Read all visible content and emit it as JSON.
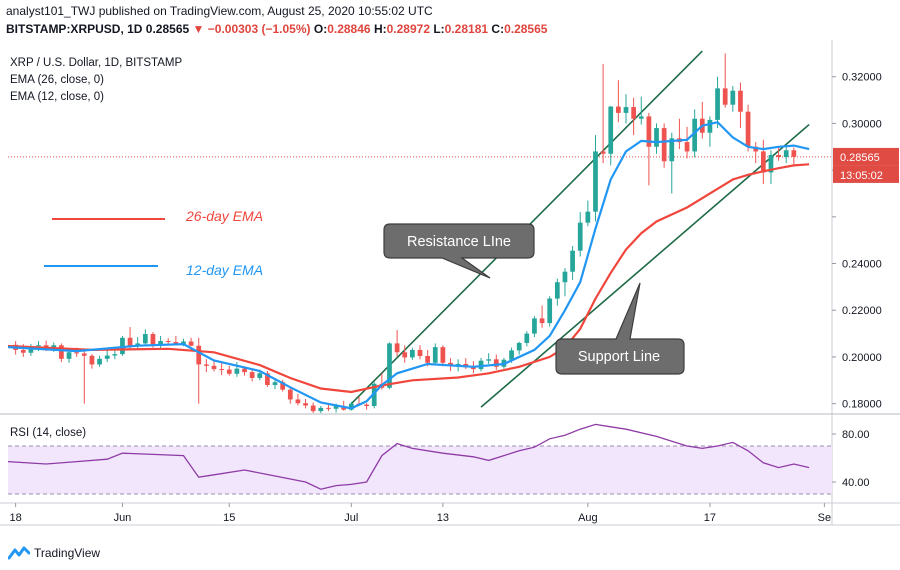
{
  "header": {
    "line1": "analyst101_TWJ published on TradingView.com, August 25, 2020 10:55:02 UTC",
    "symbol": "BITSTAMP:XRPUSD, 1D",
    "price": "0.28565",
    "change": "−0.00303 (−1.05%)",
    "o_label": "O:",
    "o_value": "0.28846",
    "h_label": "H:",
    "h_value": "0.28972",
    "l_label": "L:",
    "l_value": "0.28181",
    "c_label": "C:",
    "c_value": "0.28565"
  },
  "footer": {
    "brand": "TradingView",
    "logo_icon": "tradingview-logo-icon"
  },
  "colors": {
    "up": "#26a69a",
    "down": "#ef5350",
    "ema26": "#f0463c",
    "ema12": "#2196f3",
    "rsi_line": "#8e3ba6",
    "rsi_band": "#f1e6fb",
    "channel": "#1e6b47",
    "callout": "#6d6d6d",
    "last_price_bg": "#e04b44"
  },
  "chart_data": [
    {
      "type": "candlestick",
      "title": "XRP / U.S. Dollar, 1D, BITSTAMP",
      "indicators_legend": [
        "EMA (26, close, 0)",
        "EMA (12, close, 0)"
      ],
      "price_axis_ticks": [
        0.18,
        0.2,
        0.22,
        0.24,
        0.26,
        0.28,
        0.3,
        0.32
      ],
      "price_axis_labels": [
        "0.18000",
        "0.20000",
        "0.22000",
        "0.24000",
        "",
        "",
        "0.30000",
        "0.32000"
      ],
      "ylim": [
        0.176,
        0.334
      ],
      "last_price": 0.28565,
      "last_price_label": "0.28565",
      "countdown_label": "13:05:02",
      "x_axis_labels": [
        {
          "label": "18",
          "day": 0
        },
        {
          "label": "Jun",
          "day": 14
        },
        {
          "label": "15",
          "day": 28
        },
        {
          "label": "Jul",
          "day": 44
        },
        {
          "label": "13",
          "day": 56
        },
        {
          "label": "Aug",
          "day": 75
        },
        {
          "label": "17",
          "day": 91
        },
        {
          "label": "Se",
          "day": 106
        }
      ],
      "day_range": [
        -1,
        107
      ],
      "candles_ohlc": [
        [
          0.2052,
          0.2068,
          0.201,
          0.203
        ],
        [
          0.203,
          0.2055,
          0.2,
          0.2018
        ],
        [
          0.2018,
          0.2056,
          0.2005,
          0.2046
        ],
        [
          0.2046,
          0.2068,
          0.2025,
          0.205
        ],
        [
          0.205,
          0.207,
          0.2025,
          0.2035
        ],
        [
          0.2035,
          0.2062,
          0.2022,
          0.205
        ],
        [
          0.205,
          0.2058,
          0.1978,
          0.1992
        ],
        [
          0.1992,
          0.2032,
          0.1975,
          0.202
        ],
        [
          0.202,
          0.204,
          0.2,
          0.2015
        ],
        [
          0.2015,
          0.203,
          0.18,
          0.2005
        ],
        [
          0.2005,
          0.2012,
          0.195,
          0.1968
        ],
        [
          0.1968,
          0.2005,
          0.1958,
          0.1992
        ],
        [
          0.1992,
          0.2028,
          0.1978,
          0.2006
        ],
        [
          0.2006,
          0.2028,
          0.199,
          0.2012
        ],
        [
          0.2012,
          0.209,
          0.2005,
          0.2082
        ],
        [
          0.2082,
          0.2128,
          0.203,
          0.2045
        ],
        [
          0.2045,
          0.2086,
          0.203,
          0.2058
        ],
        [
          0.2058,
          0.2118,
          0.2048,
          0.2098
        ],
        [
          0.2098,
          0.2106,
          0.204,
          0.2052
        ],
        [
          0.2052,
          0.209,
          0.2038,
          0.2068
        ],
        [
          0.2068,
          0.208,
          0.205,
          0.2064
        ],
        [
          0.2064,
          0.209,
          0.2052,
          0.2056
        ],
        [
          0.2056,
          0.2078,
          0.2046,
          0.2066
        ],
        [
          0.2066,
          0.2082,
          0.2046,
          0.2048
        ],
        [
          0.2048,
          0.2082,
          0.18,
          0.1968
        ],
        [
          0.1968,
          0.199,
          0.1935,
          0.1962
        ],
        [
          0.1962,
          0.1985,
          0.1938,
          0.1948
        ],
        [
          0.1948,
          0.198,
          0.1922,
          0.1946
        ],
        [
          0.1946,
          0.1962,
          0.192,
          0.1928
        ],
        [
          0.1928,
          0.1978,
          0.1915,
          0.195
        ],
        [
          0.195,
          0.196,
          0.192,
          0.1935
        ],
        [
          0.1935,
          0.1948,
          0.1895,
          0.191
        ],
        [
          0.191,
          0.1945,
          0.19,
          0.193
        ],
        [
          0.193,
          0.194,
          0.1872,
          0.188
        ],
        [
          0.188,
          0.1908,
          0.1862,
          0.1892
        ],
        [
          0.1892,
          0.1902,
          0.1852,
          0.186
        ],
        [
          0.186,
          0.187,
          0.18,
          0.1818
        ],
        [
          0.1818,
          0.1842,
          0.1792,
          0.1802
        ],
        [
          0.1802,
          0.182,
          0.178,
          0.1792
        ],
        [
          0.1792,
          0.1805,
          0.176,
          0.1768
        ],
        [
          0.1768,
          0.179,
          0.1752,
          0.1782
        ],
        [
          0.1782,
          0.1796,
          0.1768,
          0.1778
        ],
        [
          0.1778,
          0.18,
          0.1762,
          0.179
        ],
        [
          0.179,
          0.1812,
          0.177,
          0.1774
        ],
        [
          0.1774,
          0.1808,
          0.177,
          0.18
        ],
        [
          0.18,
          0.183,
          0.179,
          0.1796
        ],
        [
          0.1796,
          0.1802,
          0.1774,
          0.179
        ],
        [
          0.179,
          0.1892,
          0.178,
          0.1885
        ],
        [
          0.1885,
          0.193,
          0.186,
          0.1868
        ],
        [
          0.1868,
          0.2062,
          0.1862,
          0.2058
        ],
        [
          0.2058,
          0.2115,
          0.2002,
          0.202
        ],
        [
          0.202,
          0.205,
          0.1975,
          0.1998
        ],
        [
          0.1998,
          0.204,
          0.1988,
          0.203
        ],
        [
          0.203,
          0.205,
          0.199,
          0.2004
        ],
        [
          0.2004,
          0.203,
          0.196,
          0.1975
        ],
        [
          0.1975,
          0.2058,
          0.197,
          0.2042
        ],
        [
          0.2042,
          0.205,
          0.196,
          0.1975
        ],
        [
          0.1975,
          0.1995,
          0.194,
          0.1962
        ],
        [
          0.1962,
          0.199,
          0.1938,
          0.197
        ],
        [
          0.197,
          0.1995,
          0.1948,
          0.1955
        ],
        [
          0.1955,
          0.1982,
          0.193,
          0.1948
        ],
        [
          0.1948,
          0.1996,
          0.1938,
          0.1984
        ],
        [
          0.1984,
          0.2016,
          0.197,
          0.199
        ],
        [
          0.199,
          0.201,
          0.1945,
          0.1958
        ],
        [
          0.1958,
          0.1996,
          0.195,
          0.1988
        ],
        [
          0.1988,
          0.204,
          0.1975,
          0.2028
        ],
        [
          0.2028,
          0.2065,
          0.201,
          0.206
        ],
        [
          0.206,
          0.211,
          0.2045,
          0.21
        ],
        [
          0.21,
          0.2175,
          0.2085,
          0.2165
        ],
        [
          0.2165,
          0.222,
          0.2125,
          0.2145
        ],
        [
          0.2145,
          0.226,
          0.213,
          0.225
        ],
        [
          0.225,
          0.2335,
          0.222,
          0.232
        ],
        [
          0.232,
          0.238,
          0.226,
          0.2365
        ],
        [
          0.2365,
          0.2475,
          0.233,
          0.2455
        ],
        [
          0.2455,
          0.262,
          0.243,
          0.2575
        ],
        [
          0.2575,
          0.267,
          0.256,
          0.2622
        ],
        [
          0.2622,
          0.295,
          0.258,
          0.288
        ],
        [
          0.288,
          0.3255,
          0.283,
          0.287
        ],
        [
          0.287,
          0.3075,
          0.282,
          0.3072
        ],
        [
          0.3072,
          0.3185,
          0.3005,
          0.3045
        ],
        [
          0.3045,
          0.3125,
          0.3,
          0.307
        ],
        [
          0.307,
          0.311,
          0.295,
          0.302
        ],
        [
          0.302,
          0.3115,
          0.2995,
          0.303
        ],
        [
          0.303,
          0.3045,
          0.2735,
          0.29
        ],
        [
          0.29,
          0.3,
          0.287,
          0.298
        ],
        [
          0.298,
          0.3,
          0.281,
          0.2838
        ],
        [
          0.2838,
          0.296,
          0.27,
          0.2936
        ],
        [
          0.2936,
          0.302,
          0.289,
          0.292
        ],
        [
          0.292,
          0.2985,
          0.285,
          0.288
        ],
        [
          0.288,
          0.306,
          0.2855,
          0.302
        ],
        [
          0.302,
          0.3092,
          0.2935,
          0.296
        ],
        [
          0.296,
          0.303,
          0.29,
          0.3015
        ],
        [
          0.3015,
          0.32,
          0.298,
          0.315
        ],
        [
          0.315,
          0.33,
          0.3068,
          0.308
        ],
        [
          0.308,
          0.316,
          0.305,
          0.314
        ],
        [
          0.314,
          0.3175,
          0.298,
          0.305
        ],
        [
          0.305,
          0.308,
          0.288,
          0.29
        ],
        [
          0.29,
          0.292,
          0.283,
          0.288
        ],
        [
          0.288,
          0.293,
          0.274,
          0.279
        ],
        [
          0.279,
          0.2885,
          0.274,
          0.2865
        ],
        [
          0.2865,
          0.2898,
          0.284,
          0.2856
        ],
        [
          0.2856,
          0.2898,
          0.283,
          0.2885
        ],
        [
          0.2885,
          0.2897,
          0.2818,
          0.2857
        ]
      ],
      "ema26_label": "26-day EMA",
      "ema12_label": "12-day EMA",
      "ema26_values": [
        [
          -1,
          0.2047
        ],
        [
          10,
          0.203
        ],
        [
          20,
          0.2035
        ],
        [
          26,
          0.202
        ],
        [
          32,
          0.1965
        ],
        [
          36,
          0.191
        ],
        [
          40,
          0.1865
        ],
        [
          44,
          0.185
        ],
        [
          48,
          0.1878
        ],
        [
          52,
          0.19
        ],
        [
          58,
          0.1912
        ],
        [
          62,
          0.193
        ],
        [
          66,
          0.1958
        ],
        [
          70,
          0.2
        ],
        [
          72,
          0.204
        ],
        [
          74,
          0.212
        ],
        [
          76,
          0.225
        ],
        [
          78,
          0.236
        ],
        [
          80,
          0.246
        ],
        [
          82,
          0.253
        ],
        [
          84,
          0.258
        ],
        [
          88,
          0.264
        ],
        [
          92,
          0.272
        ],
        [
          94,
          0.276
        ],
        [
          96,
          0.278
        ],
        [
          98,
          0.2795
        ],
        [
          100,
          0.2808
        ],
        [
          102,
          0.282
        ],
        [
          104,
          0.2825
        ]
      ],
      "ema12_values": [
        [
          -1,
          0.2042
        ],
        [
          8,
          0.2025
        ],
        [
          16,
          0.2048
        ],
        [
          22,
          0.2055
        ],
        [
          26,
          0.1985
        ],
        [
          32,
          0.194
        ],
        [
          36,
          0.187
        ],
        [
          40,
          0.1805
        ],
        [
          44,
          0.178
        ],
        [
          46,
          0.181
        ],
        [
          48,
          0.188
        ],
        [
          50,
          0.193
        ],
        [
          54,
          0.197
        ],
        [
          60,
          0.1958
        ],
        [
          64,
          0.197
        ],
        [
          68,
          0.203
        ],
        [
          70,
          0.209
        ],
        [
          72,
          0.22
        ],
        [
          74,
          0.232
        ],
        [
          76,
          0.255
        ],
        [
          78,
          0.276
        ],
        [
          80,
          0.288
        ],
        [
          82,
          0.2925
        ],
        [
          84,
          0.292
        ],
        [
          88,
          0.293
        ],
        [
          90,
          0.299
        ],
        [
          92,
          0.3005
        ],
        [
          94,
          0.294
        ],
        [
          96,
          0.29
        ],
        [
          98,
          0.289
        ],
        [
          100,
          0.29
        ],
        [
          102,
          0.2905
        ],
        [
          104,
          0.289
        ]
      ],
      "channel_resistance": [
        [
          44,
          0.18
        ],
        [
          90,
          0.331
        ]
      ],
      "channel_support": [
        [
          61,
          0.1785
        ],
        [
          104,
          0.2995
        ]
      ],
      "callouts": [
        "Resistance LIne",
        "Support Line"
      ]
    },
    {
      "type": "line",
      "title": "RSI (14, close)",
      "ylim": [
        25,
        95
      ],
      "y_ticks": [
        40,
        80
      ],
      "y_tick_labels": [
        "40.00",
        "80.00"
      ],
      "band": [
        30,
        70
      ],
      "values": [
        [
          -1,
          57
        ],
        [
          4,
          55
        ],
        [
          8,
          57
        ],
        [
          12,
          59
        ],
        [
          14,
          64
        ],
        [
          18,
          63
        ],
        [
          22,
          62
        ],
        [
          24,
          44
        ],
        [
          26,
          46
        ],
        [
          30,
          50
        ],
        [
          34,
          45
        ],
        [
          38,
          40
        ],
        [
          40,
          34
        ],
        [
          42,
          37
        ],
        [
          44,
          38
        ],
        [
          46,
          40
        ],
        [
          48,
          62
        ],
        [
          50,
          72
        ],
        [
          52,
          68
        ],
        [
          56,
          64
        ],
        [
          60,
          61
        ],
        [
          62,
          58
        ],
        [
          64,
          62
        ],
        [
          66,
          66
        ],
        [
          68,
          69
        ],
        [
          70,
          76
        ],
        [
          72,
          79
        ],
        [
          74,
          84
        ],
        [
          76,
          88
        ],
        [
          78,
          86
        ],
        [
          80,
          84
        ],
        [
          84,
          78
        ],
        [
          86,
          74
        ],
        [
          88,
          70
        ],
        [
          90,
          68
        ],
        [
          92,
          70
        ],
        [
          94,
          73
        ],
        [
          96,
          66
        ],
        [
          98,
          56
        ],
        [
          100,
          52
        ],
        [
          102,
          55
        ],
        [
          104,
          52
        ]
      ]
    }
  ]
}
